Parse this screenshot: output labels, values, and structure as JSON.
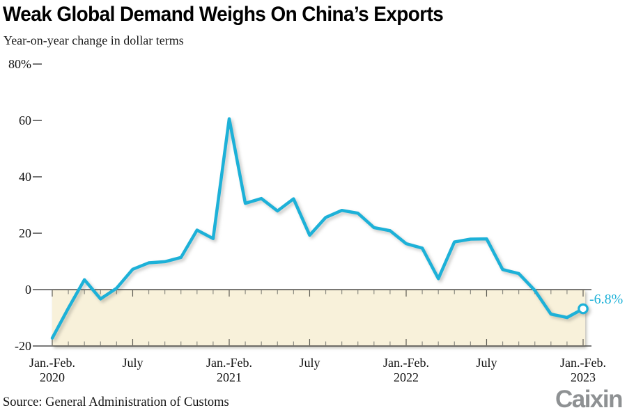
{
  "header": {
    "title": "Weak Global Demand Weighs On China’s Exports",
    "subtitle": "Year-on-year change in dollar terms"
  },
  "footer": {
    "source": "Source: General Administration of Customs",
    "logo": "Caixin"
  },
  "chart_data": {
    "type": "line",
    "title": "Weak Global Demand Weighs On China’s Exports",
    "subtitle": "Year-on-year change in dollar terms",
    "unit": "%",
    "ylim": [
      -20,
      80
    ],
    "grid": false,
    "legend": "none",
    "x": [
      "Jan.-Feb. 2020",
      "March 2020",
      "April 2020",
      "May 2020",
      "June 2020",
      "July 2020",
      "Aug. 2020",
      "Sept. 2020",
      "Oct. 2020",
      "Nov. 2020",
      "Dec. 2020",
      "Jan.-Feb. 2021",
      "March 2021",
      "April 2021",
      "May 2021",
      "June 2021",
      "July 2021",
      "Aug. 2021",
      "Sept. 2021",
      "Oct. 2021",
      "Nov. 2021",
      "Dec. 2021",
      "Jan.-Feb. 2022",
      "March 2022",
      "April 2022",
      "May 2022",
      "June 2022",
      "July 2022",
      "Aug. 2022",
      "Sept. 2022",
      "Oct. 2022",
      "Nov. 2022",
      "Dec. 2022",
      "Jan.-Feb. 2023"
    ],
    "values": [
      -17.2,
      -6.6,
      3.5,
      -3.3,
      0.5,
      7.2,
      9.5,
      9.9,
      11.4,
      21.1,
      18.1,
      60.6,
      30.6,
      32.3,
      27.9,
      32.2,
      19.3,
      25.6,
      28.1,
      27.1,
      22.0,
      20.9,
      16.3,
      14.7,
      3.9,
      16.9,
      17.9,
      18.0,
      7.1,
      5.7,
      -0.3,
      -8.7,
      -9.9,
      -6.8
    ],
    "y_ticks": [
      {
        "value": 80,
        "label": "80%"
      },
      {
        "value": 60,
        "label": "60"
      },
      {
        "value": 40,
        "label": "40"
      },
      {
        "value": 20,
        "label": "20"
      },
      {
        "value": 0,
        "label": "0"
      },
      {
        "value": -20,
        "label": "-20"
      }
    ],
    "x_major_ticks": [
      {
        "index": 0,
        "label": "Jan.-Feb.",
        "year": "2020"
      },
      {
        "index": 5,
        "label": "July",
        "year": ""
      },
      {
        "index": 11,
        "label": "Jan.-Feb.",
        "year": "2021"
      },
      {
        "index": 16,
        "label": "July",
        "year": ""
      },
      {
        "index": 22,
        "label": "Jan.-Feb.",
        "year": "2022"
      },
      {
        "index": 27,
        "label": "July",
        "year": ""
      },
      {
        "index": 33,
        "label": "Jan.-Feb.",
        "year": "2023"
      }
    ],
    "shaded_band": {
      "from": 0,
      "to": -20
    },
    "annotation": {
      "label": "-6.8%",
      "value": -6.8,
      "point": "Jan.-Feb. 2023"
    },
    "colors": {
      "line": "#1db1d8",
      "shade": "#f8f1da",
      "axis": "#2b2b2b",
      "tick_major": "#5e5d55",
      "tick_minor": "#8d8c82",
      "text": "#111111",
      "logo_gray": "#8e9193"
    }
  }
}
